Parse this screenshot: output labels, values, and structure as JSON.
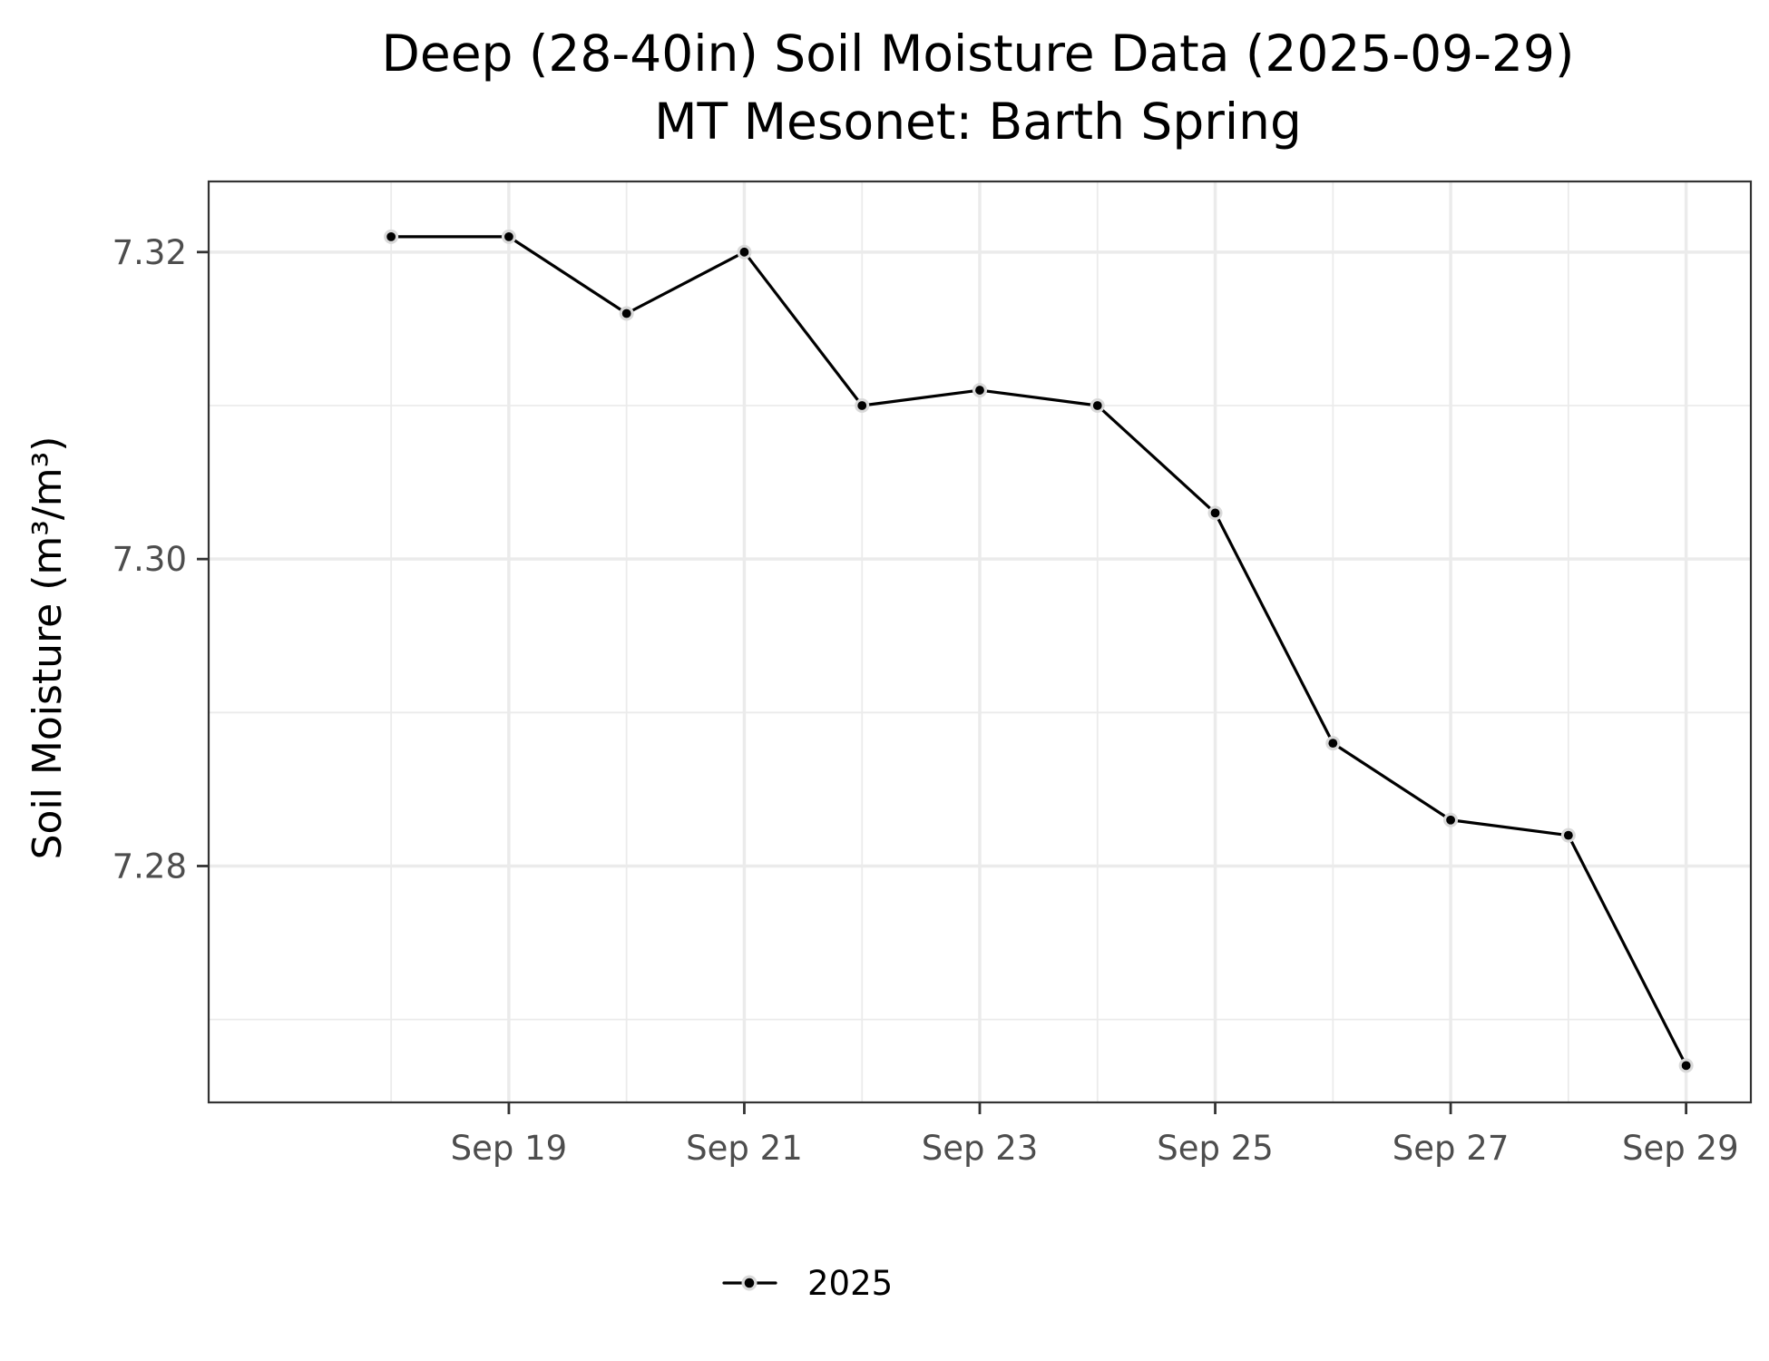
{
  "chart_data": {
    "type": "line",
    "title": "Deep (28-40in) Soil Moisture Data (2025-09-29)",
    "subtitle": "MT Mesonet: Barth Spring",
    "xlabel": "",
    "ylabel": "Soil Moisture (m³/m³)",
    "x": [
      "2025-09-18",
      "2025-09-19",
      "2025-09-20",
      "2025-09-21",
      "2025-09-22",
      "2025-09-23",
      "2025-09-24",
      "2025-09-25",
      "2025-09-26",
      "2025-09-27",
      "2025-09-28",
      "2025-09-29"
    ],
    "series": [
      {
        "name": "2025",
        "values": [
          7.321,
          7.321,
          7.316,
          7.32,
          7.31,
          7.311,
          7.31,
          7.303,
          7.288,
          7.283,
          7.282,
          7.267
        ]
      }
    ],
    "xticks": [
      "Sep 19",
      "Sep 21",
      "Sep 23",
      "Sep 25",
      "Sep 27",
      "Sep 29"
    ],
    "xtick_dates": [
      "2025-09-19",
      "2025-09-21",
      "2025-09-23",
      "2025-09-25",
      "2025-09-27",
      "2025-09-29"
    ],
    "yticks": [
      "7.28",
      "7.30",
      "7.32"
    ],
    "ytick_values": [
      7.28,
      7.3,
      7.32
    ],
    "xlim": [
      "2025-09-17",
      "2025-09-29"
    ],
    "ylim": [
      7.2646,
      7.3246
    ],
    "grid": true,
    "legend": {
      "placement": "bottom",
      "entries": [
        "2025"
      ]
    },
    "colors": {
      "line": "#000000",
      "point_halo": "#d9d9d9",
      "grid": "#ebebeb",
      "panel_border": "#333333",
      "tick_text": "#4d4d4d"
    }
  }
}
